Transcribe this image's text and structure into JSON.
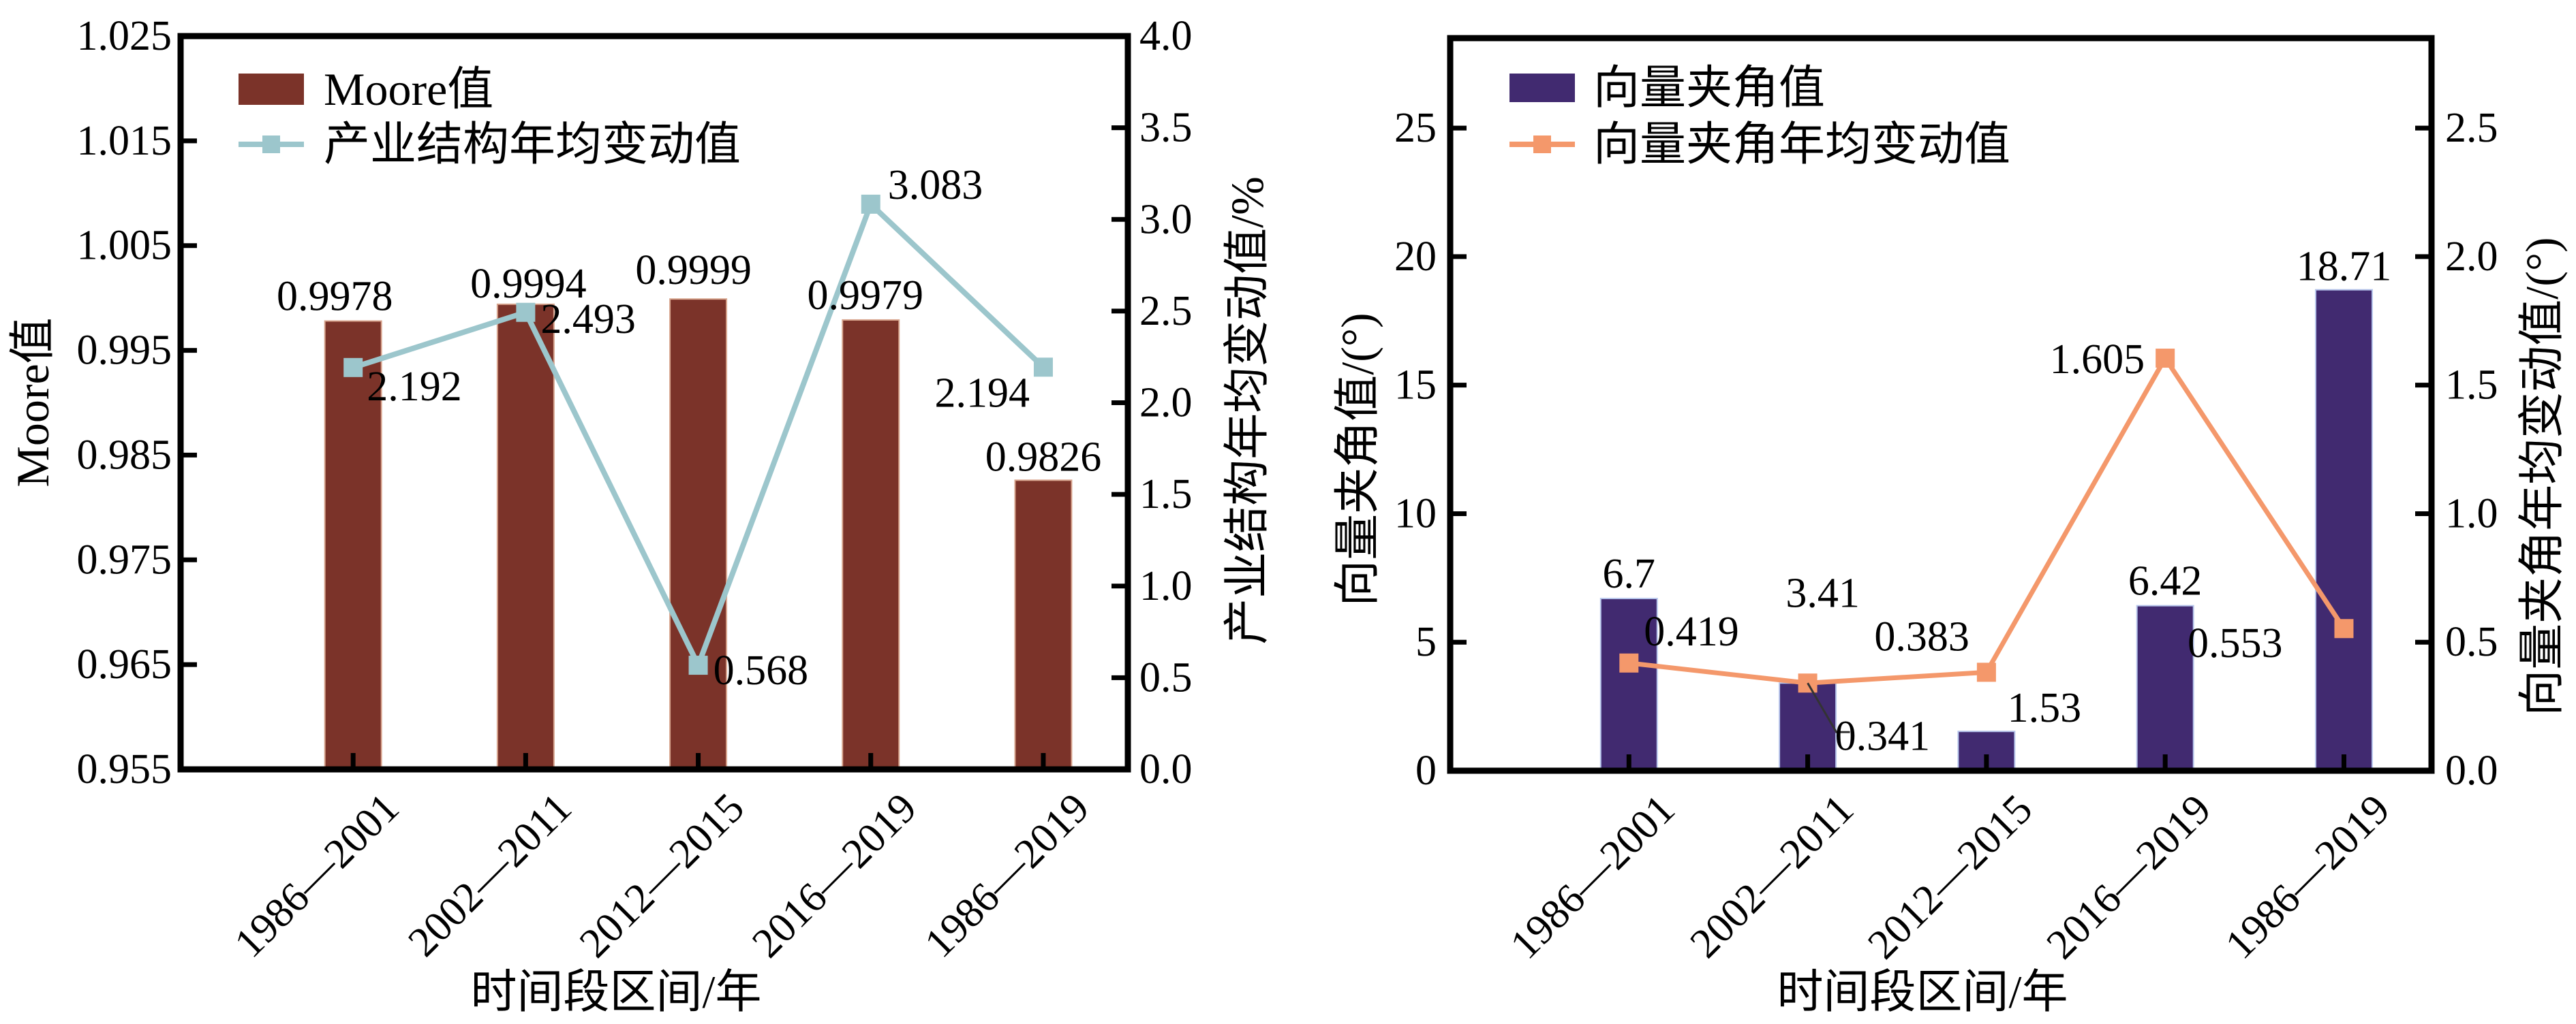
{
  "chart_data": [
    {
      "type": "bar+line",
      "categories": [
        "1986—2001",
        "2002—2011",
        "2012—2015",
        "2016—2019",
        "1986—2019"
      ],
      "xlabel": "时间段区间/年",
      "ylabel": "Moore值",
      "ylabel_right": "产业结构年均变动值/%",
      "ylim": [
        0.955,
        1.025
      ],
      "ylim_right": [
        0.0,
        4.0
      ],
      "yticks": [
        "0.955",
        "0.965",
        "0.975",
        "0.985",
        "0.995",
        "1.005",
        "1.015",
        "1.025"
      ],
      "yticks_right": [
        "0.0",
        "0.5",
        "1.0",
        "1.5",
        "2.0",
        "2.5",
        "3.0",
        "3.5",
        "4.0"
      ],
      "legend_position": "top-left",
      "grid": false,
      "series": [
        {
          "name": "Moore值",
          "kind": "bar",
          "axis": "left",
          "color": "#7b3329",
          "values": [
            0.9978,
            0.9994,
            0.9999,
            0.9979,
            0.9826
          ],
          "labels": [
            "0.9978",
            "0.9994",
            "0.9999",
            "0.9979",
            "0.9826"
          ]
        },
        {
          "name": "产业结构年均变动值",
          "kind": "line",
          "axis": "right",
          "color": "#9cc6cc",
          "values": [
            2.192,
            2.493,
            0.568,
            3.083,
            2.194
          ],
          "labels": [
            "2.192",
            "2.493",
            "0.568",
            "3.083",
            "2.194"
          ]
        }
      ]
    },
    {
      "type": "bar+line",
      "categories": [
        "1986—2001",
        "2002—2011",
        "2012—2015",
        "2016—2019",
        "1986—2019"
      ],
      "xlabel": "时间段区间/年",
      "ylabel": "向量夹角值/(°)",
      "ylabel_right": "向量夹角年均变动值/(°)",
      "ylim": [
        0,
        28.5
      ],
      "ylim_right": [
        0.0,
        2.85
      ],
      "yticks": [
        "0",
        "5",
        "10",
        "15",
        "20",
        "25"
      ],
      "yticks_right": [
        "0.0",
        "0.5",
        "1.0",
        "1.5",
        "2.0",
        "2.5"
      ],
      "legend_position": "top-left",
      "grid": false,
      "series": [
        {
          "name": "向量夹角值",
          "kind": "bar",
          "axis": "left",
          "color": "#412a70",
          "values": [
            6.7,
            3.41,
            1.53,
            6.42,
            18.71
          ],
          "labels": [
            "6.7",
            "3.41",
            "1.53",
            "6.42",
            "18.71"
          ]
        },
        {
          "name": "向量夹角年均变动值",
          "kind": "line",
          "axis": "right",
          "color": "#f4986b",
          "values": [
            0.419,
            0.341,
            0.383,
            1.605,
            0.553
          ],
          "labels": [
            "0.419",
            "0.341",
            "0.383",
            "1.605",
            "0.553"
          ]
        }
      ]
    }
  ]
}
